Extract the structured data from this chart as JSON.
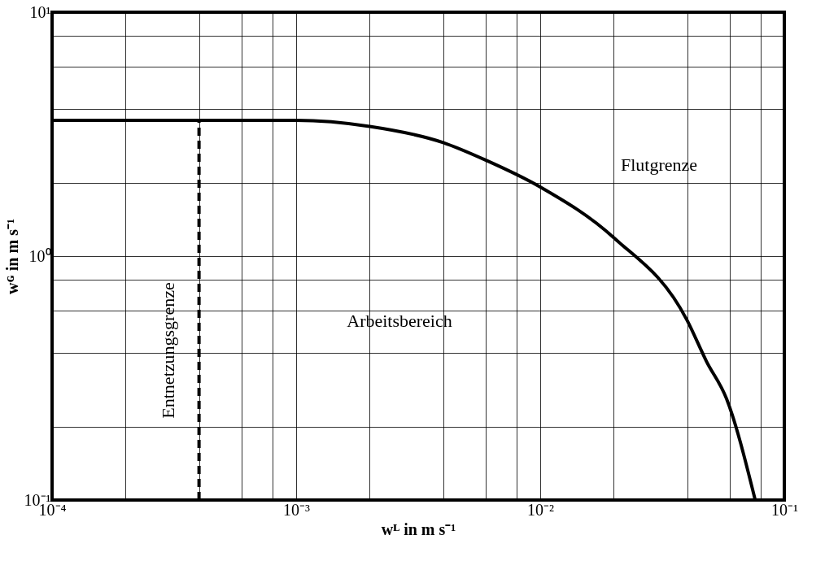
{
  "chart_data": {
    "type": "line",
    "xlabel": "wᴸ in m s⁻¹",
    "ylabel": "wᴳ in m s⁻¹",
    "log": "xy",
    "grid": true,
    "legend": false,
    "marker": "none",
    "xlim": [
      0.0001,
      0.1
    ],
    "ylim": [
      0.1,
      10
    ],
    "xticks": [
      {
        "value": 0.0001,
        "label": "10⁻⁴"
      },
      {
        "value": 0.0002,
        "label": null
      },
      {
        "value": 0.0004,
        "label": null
      },
      {
        "value": 0.0006,
        "label": null
      },
      {
        "value": 0.0008,
        "label": null
      },
      {
        "value": 0.001,
        "label": "10⁻³"
      },
      {
        "value": 0.002,
        "label": null
      },
      {
        "value": 0.004,
        "label": null
      },
      {
        "value": 0.006,
        "label": null
      },
      {
        "value": 0.008,
        "label": null
      },
      {
        "value": 0.01,
        "label": "10⁻²"
      },
      {
        "value": 0.02,
        "label": null
      },
      {
        "value": 0.04,
        "label": null
      },
      {
        "value": 0.06,
        "label": null
      },
      {
        "value": 0.08,
        "label": null
      },
      {
        "value": 0.1,
        "label": "10⁻¹"
      }
    ],
    "yticks": [
      {
        "value": 0.1,
        "label": "10⁻¹"
      },
      {
        "value": 0.2,
        "label": null
      },
      {
        "value": 0.4,
        "label": null
      },
      {
        "value": 0.6,
        "label": null
      },
      {
        "value": 0.8,
        "label": null
      },
      {
        "value": 1,
        "label": "10⁰"
      },
      {
        "value": 2,
        "label": null
      },
      {
        "value": 4,
        "label": null
      },
      {
        "value": 6,
        "label": null
      },
      {
        "value": 8,
        "label": null
      },
      {
        "value": 10,
        "label": "10¹"
      }
    ],
    "series": [
      {
        "name": "Flutgrenze",
        "color": "#000000",
        "line_style": "solid",
        "x": [
          0.0001,
          0.001,
          0.002,
          0.004,
          0.006,
          0.01,
          0.02,
          0.04,
          0.048,
          0.058,
          0.076
        ],
        "values": [
          3.6,
          3.6,
          3.4,
          2.92,
          2.47,
          1.92,
          1.19,
          0.545,
          0.37,
          0.26,
          0.1
        ]
      },
      {
        "name": "Entnetzungsgrenze",
        "color": "#000000",
        "line_style": "dashed",
        "x": [
          0.0004,
          0.0004
        ],
        "values": [
          0.1,
          3.6
        ]
      }
    ],
    "annotations": [
      "Arbeitsbereich"
    ]
  }
}
